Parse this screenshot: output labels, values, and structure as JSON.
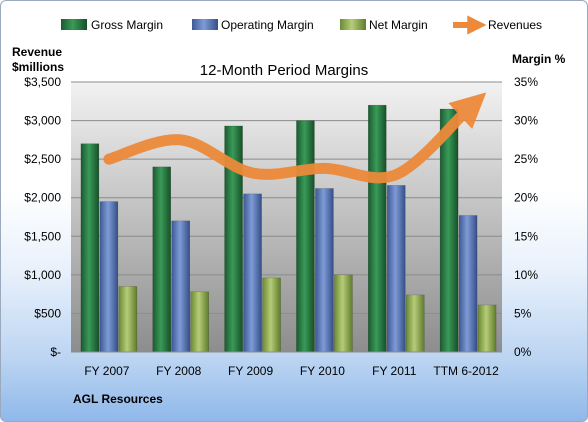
{
  "chart_data": {
    "type": "bar",
    "title": "12-Month Period Margins",
    "ylabel_left": [
      "Revenue",
      "$millions"
    ],
    "ylabel_right": "Margin %",
    "footer": "AGL Resources",
    "categories": [
      "FY 2007",
      "FY 2008",
      "FY 2009",
      "FY 2010",
      "FY 2011",
      "TTM 6-2012"
    ],
    "ylim_left": [
      0,
      3500
    ],
    "ylim_right": [
      0,
      35
    ],
    "left_ticks": [
      "$-",
      "$500",
      "$1,000",
      "$1,500",
      "$2,000",
      "$2,500",
      "$3,000",
      "$3,500"
    ],
    "right_ticks": [
      "0%",
      "5%",
      "10%",
      "15%",
      "20%",
      "25%",
      "30%",
      "35%"
    ],
    "series": [
      {
        "name": "Gross Margin",
        "axis": "right",
        "color": "#1e6b3a",
        "values": [
          27.0,
          24.0,
          29.3,
          30.0,
          32.0,
          31.5
        ]
      },
      {
        "name": "Operating Margin",
        "axis": "right",
        "color": "#4a6aaa",
        "values": [
          19.5,
          17.0,
          20.5,
          21.2,
          21.6,
          17.7
        ]
      },
      {
        "name": "Net Margin",
        "axis": "right",
        "color": "#86a24a",
        "values": [
          8.5,
          7.8,
          9.6,
          10.0,
          7.4,
          6.1
        ]
      },
      {
        "name": "Revenues",
        "axis": "left",
        "type": "line",
        "color": "#ec8a3a",
        "values": [
          2500,
          2750,
          2320,
          2380,
          2300,
          3150
        ]
      }
    ],
    "grid": true,
    "legend_position": "top"
  }
}
